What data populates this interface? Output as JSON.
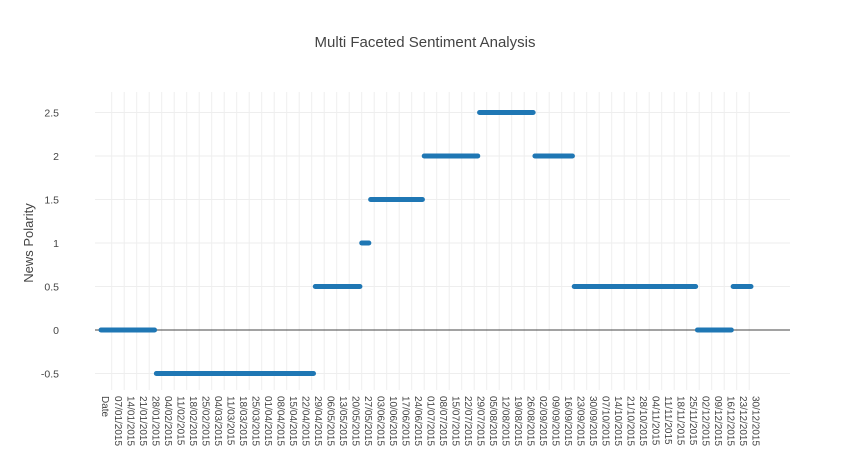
{
  "chart_data": {
    "type": "line",
    "title": "Multi Faceted Sentiment Analysis",
    "xlabel": "",
    "ylabel": "News Polarity",
    "ylim": [
      -0.65,
      2.75
    ],
    "yticks": [
      -0.5,
      0,
      0.5,
      1,
      1.5,
      2,
      2.5
    ],
    "ytick_labels": [
      "-0.5",
      "0",
      "0.5",
      "1",
      "1.5",
      "2",
      "2.5"
    ],
    "grid": true,
    "x_first_label": "Date",
    "x_tick_labels": [
      "07/01/2015",
      "14/01/2015",
      "21/01/2015",
      "28/01/2015",
      "04/02/2015",
      "11/02/2015",
      "18/02/2015",
      "25/02/2015",
      "04/03/2015",
      "11/03/2015",
      "18/03/2015",
      "25/03/2015",
      "01/04/2015",
      "08/04/2015",
      "15/04/2015",
      "22/04/2015",
      "29/04/2015",
      "06/05/2015",
      "13/05/2015",
      "20/05/2015",
      "27/05/2015",
      "03/06/2015",
      "10/06/2015",
      "17/06/2015",
      "24/06/2015",
      "01/07/2015",
      "08/07/2015",
      "15/07/2015",
      "22/07/2015",
      "29/07/2015",
      "05/08/2015",
      "12/08/2015",
      "19/08/2015",
      "26/08/2015",
      "02/09/2015",
      "09/09/2015",
      "16/09/2015",
      "23/09/2015",
      "30/09/2015",
      "07/10/2015",
      "14/10/2015",
      "21/10/2015",
      "28/10/2015",
      "04/11/2015",
      "11/11/2015",
      "18/11/2015",
      "25/11/2015",
      "02/12/2015",
      "09/12/2015",
      "16/12/2015",
      "23/12/2015",
      "30/12/2015"
    ],
    "series_color": "#1f77b4",
    "segments": [
      {
        "x_start": "01/01/2015",
        "x_end": "31/01/2015",
        "y": 0
      },
      {
        "x_start": "01/02/2015",
        "x_end": "30/04/2015",
        "y": -0.5
      },
      {
        "x_start": "01/05/2015",
        "x_end": "26/05/2015",
        "y": 0.5
      },
      {
        "x_start": "27/05/2015",
        "x_end": "31/05/2015",
        "y": 1
      },
      {
        "x_start": "01/06/2015",
        "x_end": "30/06/2015",
        "y": 1.5
      },
      {
        "x_start": "01/07/2015",
        "x_end": "31/07/2015",
        "y": 2
      },
      {
        "x_start": "01/08/2015",
        "x_end": "31/08/2015",
        "y": 2.5
      },
      {
        "x_start": "01/09/2015",
        "x_end": "22/09/2015",
        "y": 2
      },
      {
        "x_start": "23/09/2015",
        "x_end": "30/11/2015",
        "y": 0.5
      },
      {
        "x_start": "01/12/2015",
        "x_end": "20/12/2015",
        "y": 0
      },
      {
        "x_start": "21/12/2015",
        "x_end": "31/12/2015",
        "y": 0.5
      }
    ]
  }
}
